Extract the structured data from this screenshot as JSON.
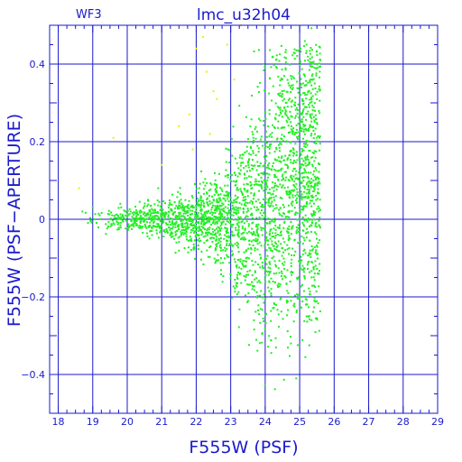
{
  "chart_data": {
    "type": "scatter",
    "title": "lmc_u32h04",
    "chip_label": "WF3",
    "xlabel": "F555W (PSF)",
    "ylabel": "F555W (PSF−APERTURE)",
    "xlim": [
      17.75,
      29
    ],
    "ylim": [
      -0.5,
      0.5
    ],
    "x_ticks": [
      18,
      19,
      20,
      21,
      22,
      23,
      24,
      25,
      26,
      27,
      28,
      29
    ],
    "y_ticks": [
      -0.4,
      -0.2,
      0,
      0.2,
      0.4
    ],
    "x_tick_labels": [
      "18",
      "19",
      "20",
      "21",
      "22",
      "23",
      "24",
      "25",
      "26",
      "27",
      "28",
      "29"
    ],
    "y_tick_labels": [
      "−0.4",
      "−0.2",
      "0",
      "0.2",
      "0.4"
    ],
    "grid": true,
    "colors": {
      "frame": "#1a1acc",
      "main": "#22ee22",
      "flagged": "#eeee00"
    },
    "series": [
      {
        "color": "#22ee22",
        "description_of_distribution": "dense cloud of stars, centered near 0 for bright magnitudes, fanning out to about ±0.4 toward 25.5",
        "points_sample": [
          [
            18.7,
            0.02
          ],
          [
            19.0,
            0.03
          ],
          [
            19.2,
            0.01
          ],
          [
            19.5,
            0.0
          ],
          [
            19.6,
            -0.01
          ],
          [
            19.8,
            0.04
          ],
          [
            20.1,
            0.02
          ],
          [
            20.3,
            0.0
          ],
          [
            20.6,
            0.05
          ],
          [
            20.9,
            0.08
          ],
          [
            21.2,
            0.03
          ],
          [
            21.5,
            0.01
          ],
          [
            21.8,
            0.0
          ],
          [
            22.0,
            -0.02
          ],
          [
            22.3,
            0.02
          ],
          [
            22.5,
            0.05
          ],
          [
            22.7,
            -0.03
          ],
          [
            23.0,
            0.01
          ],
          [
            23.2,
            -0.04
          ],
          [
            23.5,
            0.06
          ],
          [
            23.7,
            -0.08
          ],
          [
            24.0,
            0.1
          ],
          [
            24.2,
            -0.1
          ],
          [
            24.4,
            0.15
          ],
          [
            24.6,
            -0.15
          ],
          [
            24.8,
            0.22
          ],
          [
            25.0,
            -0.2
          ],
          [
            25.1,
            0.35
          ],
          [
            25.2,
            -0.25
          ],
          [
            25.3,
            0.3
          ],
          [
            25.4,
            0.1
          ],
          [
            25.5,
            0.4
          ],
          [
            24.9,
            -0.41
          ],
          [
            25.2,
            0.45
          ],
          [
            24.6,
            0.3
          ]
        ]
      },
      {
        "color": "#eeee00",
        "description_of_distribution": "sparse points above the main locus between 21 and 23",
        "points_sample": [
          [
            18.6,
            0.08
          ],
          [
            19.6,
            0.21
          ],
          [
            21.0,
            0.14
          ],
          [
            21.5,
            0.24
          ],
          [
            21.8,
            0.27
          ],
          [
            22.0,
            0.44
          ],
          [
            22.3,
            0.38
          ],
          [
            22.5,
            0.33
          ],
          [
            22.6,
            0.31
          ],
          [
            22.2,
            0.47
          ],
          [
            22.9,
            0.45
          ],
          [
            23.1,
            0.36
          ],
          [
            22.4,
            0.22
          ],
          [
            21.9,
            0.18
          ],
          [
            23.3,
            0.5
          ]
        ]
      }
    ]
  }
}
